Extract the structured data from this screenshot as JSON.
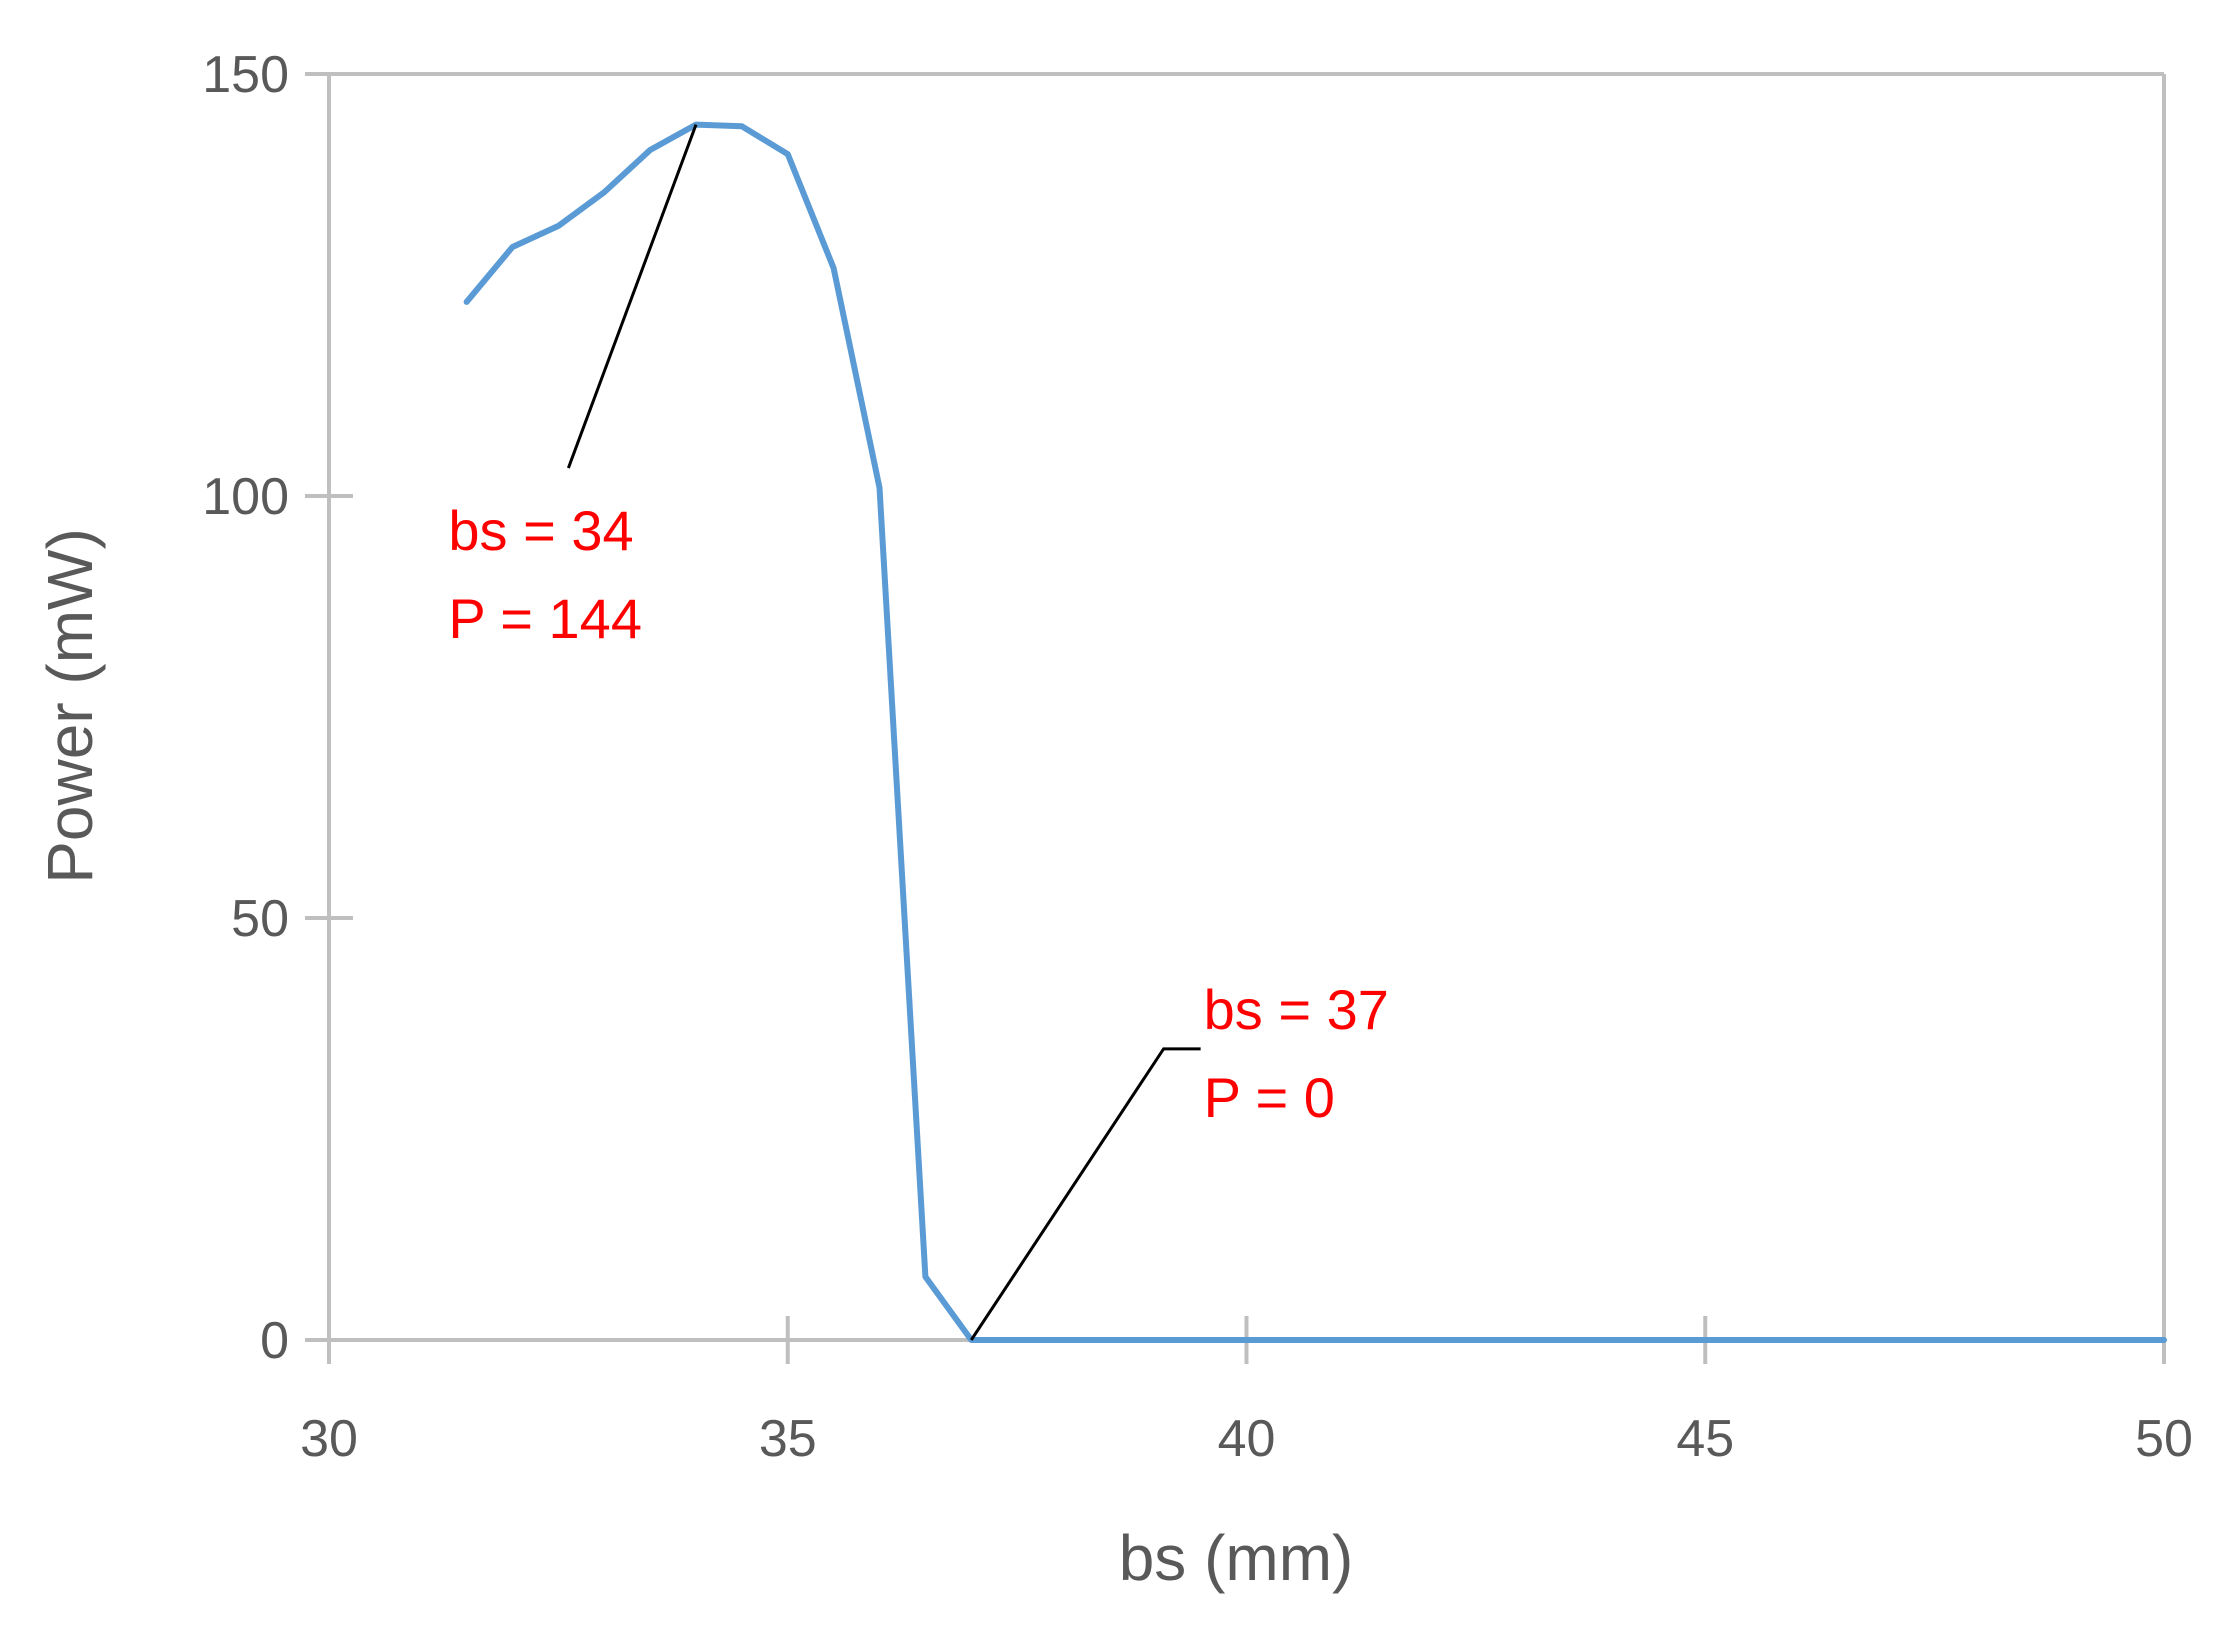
{
  "chart_data": {
    "type": "line",
    "title": "",
    "xlabel": "bs (mm)",
    "ylabel": "Power (mW)",
    "xlim": [
      30,
      50
    ],
    "ylim": [
      0,
      150
    ],
    "x_ticks": [
      30,
      35,
      40,
      45,
      50
    ],
    "y_ticks": [
      0,
      50,
      100,
      150
    ],
    "grid": false,
    "line_color": "#5b9bd5",
    "annotation_color": "#ff0000",
    "series": [
      {
        "x": [
          31.5,
          32.0,
          32.5,
          33.0,
          33.5,
          34.0,
          34.5,
          35.0,
          35.5,
          36.0,
          36.5,
          37.0,
          37.5,
          38.0,
          38.5,
          39.0,
          39.5,
          40.0,
          40.5,
          41.0,
          41.5,
          42.0,
          42.5,
          43.0,
          43.5,
          44.0,
          44.5,
          45.0,
          45.5,
          46.0,
          46.5,
          47.0,
          47.5,
          48.0,
          48.5,
          49.0,
          49.5,
          50.0
        ],
        "y": [
          123,
          129.5,
          132,
          136,
          141,
          144,
          143.8,
          140.5,
          127,
          101,
          7.5,
          0,
          0,
          0,
          0,
          0,
          0,
          0,
          0,
          0,
          0,
          0,
          0,
          0,
          0,
          0,
          0,
          0,
          0,
          0,
          0,
          0,
          0,
          0,
          0,
          0,
          0,
          0
        ]
      }
    ],
    "annotations": [
      {
        "point": [
          34,
          144
        ],
        "label_at": [
          32.5,
          109
        ],
        "line1": "bs = 34",
        "line2": "P = 144"
      },
      {
        "point": [
          37,
          0
        ],
        "label_at": [
          39.5,
          34.5
        ],
        "line1": "bs = 37",
        "line2": "P = 0"
      }
    ]
  }
}
